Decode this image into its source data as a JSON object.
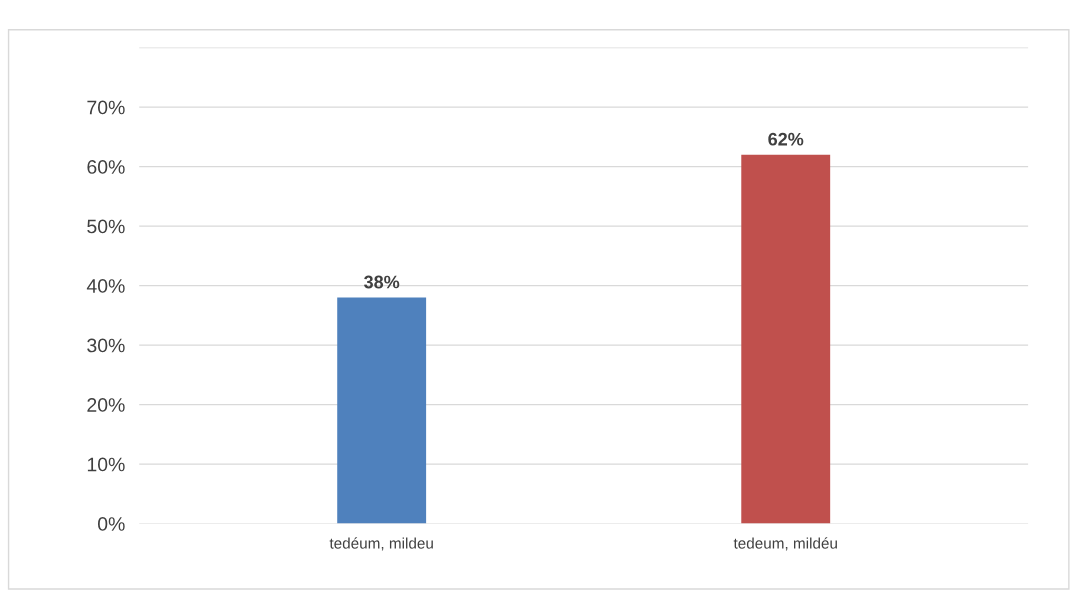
{
  "chart_data": {
    "type": "bar",
    "categories": [
      "tedéum, mildeu",
      "tedeum, mildéu"
    ],
    "values": [
      38,
      62
    ],
    "colors": [
      "#4f81bd",
      "#c0504d"
    ],
    "value_labels": [
      "38%",
      "62%"
    ],
    "ylim": [
      0,
      80
    ],
    "yticks": [
      {
        "value": 0,
        "label": "0%"
      },
      {
        "value": 10,
        "label": "10%"
      },
      {
        "value": 20,
        "label": "20%"
      },
      {
        "value": 30,
        "label": "30%"
      },
      {
        "value": 40,
        "label": "40%"
      },
      {
        "value": 50,
        "label": "50%"
      },
      {
        "value": 60,
        "label": "60%"
      },
      {
        "value": 70,
        "label": "70%"
      },
      {
        "value": 80,
        "label": null
      }
    ],
    "grid": "y"
  }
}
